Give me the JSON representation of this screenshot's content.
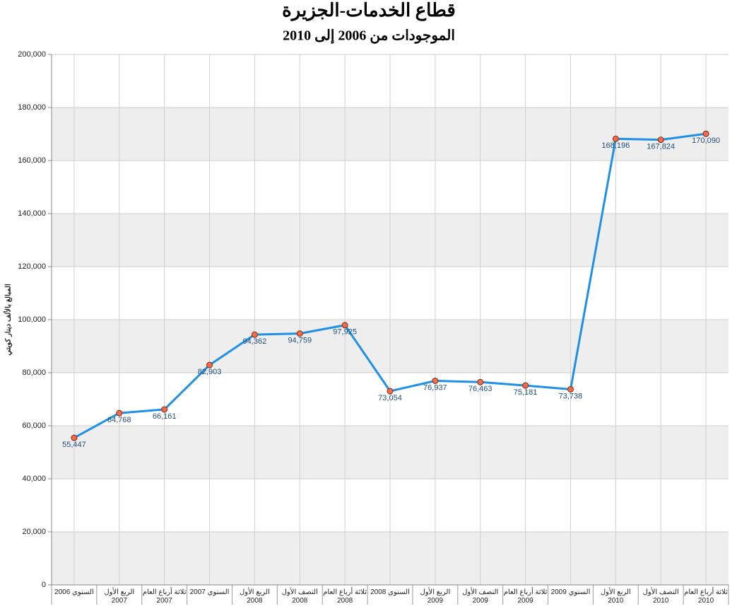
{
  "chart_data": {
    "type": "line",
    "title": "قطاع الخدمات-الجزيرة",
    "subtitle": "الموجودات من 2006 إلى 2010",
    "y_label": "المبالغ بالألف دينار كويتي",
    "categories": [
      "السنوي 2006",
      "الربع الأول\n2007",
      "ثلاثة أرباع العام\n2007",
      "السنوي 2007",
      "الربع الأول\n2008",
      "النصف الأول\n2008",
      "ثلاثة أرباع العام\n2008",
      "السنوي 2008",
      "الربع الأول\n2009",
      "النصف الأول\n2009",
      "ثلاثة أرباع العام\n2009",
      "السنوي 2009",
      "الربع الأول\n2010",
      "النصف الأول\n2010",
      "ثلاثة أرباع العام\n2010"
    ],
    "values": [
      55447,
      64768,
      66161,
      82903,
      94362,
      94759,
      97925,
      73054,
      76937,
      76463,
      75181,
      73738,
      168196,
      167824,
      170090
    ],
    "value_labels": [
      "55,447",
      "64,768",
      "66,161",
      "82,903",
      "94,362",
      "94,759",
      "97,925",
      "73,054",
      "76,937",
      "76,463",
      "75,181",
      "73,738",
      "168,196",
      "167,824",
      "170,090"
    ],
    "color": "#1e90e8",
    "marker_color": "#f26b4a",
    "ylim": [
      0,
      200000
    ],
    "yticks": [
      0,
      {
        "value": 20000,
        "label": "20,000"
      },
      {
        "value": 40000,
        "label": "40,000"
      },
      {
        "value": 60000,
        "label": "60,000"
      },
      {
        "value": 80000,
        "label": "80,000"
      },
      {
        "value": 100000,
        "label": "100,000"
      },
      {
        "value": 120000,
        "label": "120,000"
      },
      {
        "value": 140000,
        "label": "140,000"
      },
      {
        "value": 160000,
        "label": "160,000"
      },
      {
        "value": 180000,
        "label": "180,000"
      },
      {
        "value": 200000,
        "label": "200,000"
      }
    ],
    "grid": true
  }
}
